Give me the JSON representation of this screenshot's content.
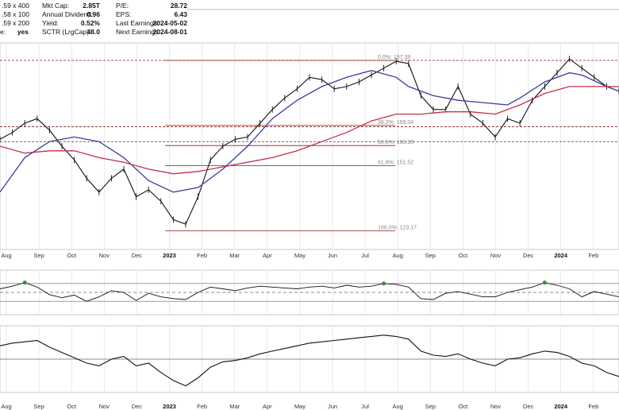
{
  "header": {
    "quote": [
      {
        "label": "",
        "value": ".59 x 400"
      },
      {
        "label": "",
        "value": ".58 x 100"
      },
      {
        "label": "",
        "value": ".59 x 200"
      },
      {
        "label": "e:",
        "value": "yes"
      }
    ],
    "fundamentals": [
      {
        "label": "Mkt Cap:",
        "value": "2.85T"
      },
      {
        "label": "Annual Dividend:",
        "value": "0.96"
      },
      {
        "label": "Yield:",
        "value": "0.52%"
      },
      {
        "label": "SCTR (LrgCap):",
        "value": "48.0"
      }
    ],
    "earnings": [
      {
        "label": "P/E:",
        "value": "28.72"
      },
      {
        "label": "EPS:",
        "value": "6.43"
      },
      {
        "label": "Last Earnings:",
        "value": "2024-05-02"
      },
      {
        "label": "Next Earnings:",
        "value": "2024-08-01"
      }
    ]
  },
  "colors": {
    "price": "#111111",
    "ma_short": "#3a3f9a",
    "ma_long": "#c2304a",
    "fib_line": "#8b1a1a",
    "overbought": "#3a8a3a"
  },
  "chart_data": {
    "type": "line",
    "title": "",
    "x_ticks": [
      "Aug",
      "Sep",
      "Oct",
      "Nov",
      "Dec",
      "2023",
      "Feb",
      "Mar",
      "Apr",
      "May",
      "Jun",
      "Jul",
      "Aug",
      "Sep",
      "Oct",
      "Nov",
      "Dec",
      "2024",
      "Feb"
    ],
    "x_ticks_bold": [
      "2023",
      "2024"
    ],
    "ylim": [
      115,
      205
    ],
    "fib_levels": [
      {
        "label": "0.0%: 197.39",
        "value": 197.39
      },
      {
        "label": "38.2%: 169.04",
        "value": 169.04
      },
      {
        "label": "50.0%: 160.28",
        "value": 160.28
      },
      {
        "label": "61.8%: 151.52",
        "value": 151.52
      },
      {
        "label": "100.0%: 123.17",
        "value": 123.17
      }
    ],
    "support_levels": [
      197.39,
      168.5,
      162.0
    ],
    "series": [
      {
        "key": "price",
        "x": [
          0,
          2,
          4,
          6,
          8,
          10,
          12,
          14,
          16,
          18,
          20,
          22,
          24,
          26,
          28,
          30,
          32,
          34,
          36,
          38,
          40,
          42,
          44,
          46,
          48,
          50,
          52,
          54,
          56,
          58,
          60,
          62,
          64,
          66,
          68,
          70,
          72,
          74,
          76,
          78,
          80,
          82,
          84,
          86,
          88,
          90,
          92,
          94,
          96,
          98,
          100
        ],
        "values": [
          163,
          166,
          170,
          172,
          167,
          160,
          154,
          146,
          140,
          146,
          150,
          138,
          141,
          136,
          128,
          126,
          138,
          154,
          160,
          163,
          164,
          170,
          176,
          181,
          185,
          190,
          189,
          185,
          186,
          188,
          191,
          194,
          197,
          196,
          182,
          176,
          176,
          186,
          174,
          170,
          164,
          172,
          170,
          180,
          186,
          192,
          198,
          194,
          190,
          186,
          184
        ]
      },
      {
        "key": "ma_short",
        "x": [
          0,
          4,
          8,
          12,
          16,
          20,
          24,
          28,
          32,
          36,
          40,
          44,
          48,
          52,
          56,
          60,
          64,
          66,
          70,
          74,
          78,
          82,
          84,
          88,
          92,
          94,
          98,
          100
        ],
        "values": [
          140,
          155,
          162,
          164,
          162,
          155,
          145,
          140,
          142,
          150,
          160,
          172,
          180,
          186,
          190,
          193,
          190,
          186,
          182,
          180,
          179,
          178,
          181,
          188,
          192,
          191,
          186,
          184
        ]
      },
      {
        "key": "ma_long",
        "x": [
          0,
          4,
          8,
          12,
          16,
          20,
          24,
          28,
          32,
          36,
          40,
          44,
          48,
          52,
          56,
          60,
          64,
          68,
          72,
          76,
          80,
          84,
          88,
          92,
          96,
          100
        ],
        "values": [
          160,
          157,
          158,
          158,
          155,
          153,
          150,
          148,
          149,
          151,
          153,
          155,
          158,
          162,
          166,
          171,
          174,
          174,
          175,
          175,
          174,
          178,
          183,
          186,
          186,
          186
        ]
      }
    ],
    "rsi": {
      "ylim": [
        0,
        100
      ],
      "levels": [
        70,
        50,
        30
      ],
      "x": [
        0,
        2,
        4,
        6,
        8,
        10,
        12,
        14,
        16,
        18,
        20,
        22,
        24,
        26,
        28,
        30,
        32,
        34,
        36,
        38,
        40,
        42,
        44,
        46,
        48,
        50,
        52,
        54,
        56,
        58,
        60,
        62,
        64,
        66,
        68,
        70,
        72,
        74,
        76,
        78,
        80,
        82,
        84,
        86,
        88,
        90,
        92,
        94,
        96,
        98,
        100
      ],
      "values": [
        58,
        64,
        72,
        62,
        45,
        38,
        44,
        30,
        40,
        54,
        50,
        32,
        48,
        40,
        36,
        34,
        50,
        62,
        58,
        54,
        60,
        64,
        62,
        60,
        58,
        62,
        64,
        60,
        66,
        62,
        64,
        70,
        68,
        62,
        36,
        34,
        48,
        52,
        46,
        40,
        40,
        50,
        56,
        62,
        72,
        66,
        58,
        40,
        52,
        46,
        40
      ]
    },
    "pmo": {
      "ylim": [
        0,
        100
      ],
      "levels": [
        50
      ],
      "x": [
        0,
        2,
        4,
        6,
        8,
        10,
        12,
        14,
        16,
        18,
        20,
        22,
        24,
        26,
        28,
        30,
        32,
        34,
        36,
        38,
        40,
        42,
        44,
        46,
        48,
        50,
        52,
        54,
        56,
        58,
        60,
        62,
        64,
        66,
        68,
        70,
        72,
        74,
        76,
        78,
        80,
        82,
        84,
        86,
        88,
        90,
        92,
        94,
        96,
        98,
        100
      ],
      "values": [
        70,
        74,
        76,
        78,
        68,
        60,
        52,
        44,
        40,
        50,
        54,
        40,
        44,
        30,
        18,
        10,
        22,
        38,
        46,
        48,
        52,
        58,
        62,
        66,
        70,
        74,
        76,
        78,
        80,
        82,
        84,
        86,
        84,
        80,
        62,
        56,
        54,
        58,
        50,
        44,
        40,
        50,
        52,
        58,
        62,
        60,
        54,
        44,
        40,
        30,
        24
      ]
    }
  }
}
